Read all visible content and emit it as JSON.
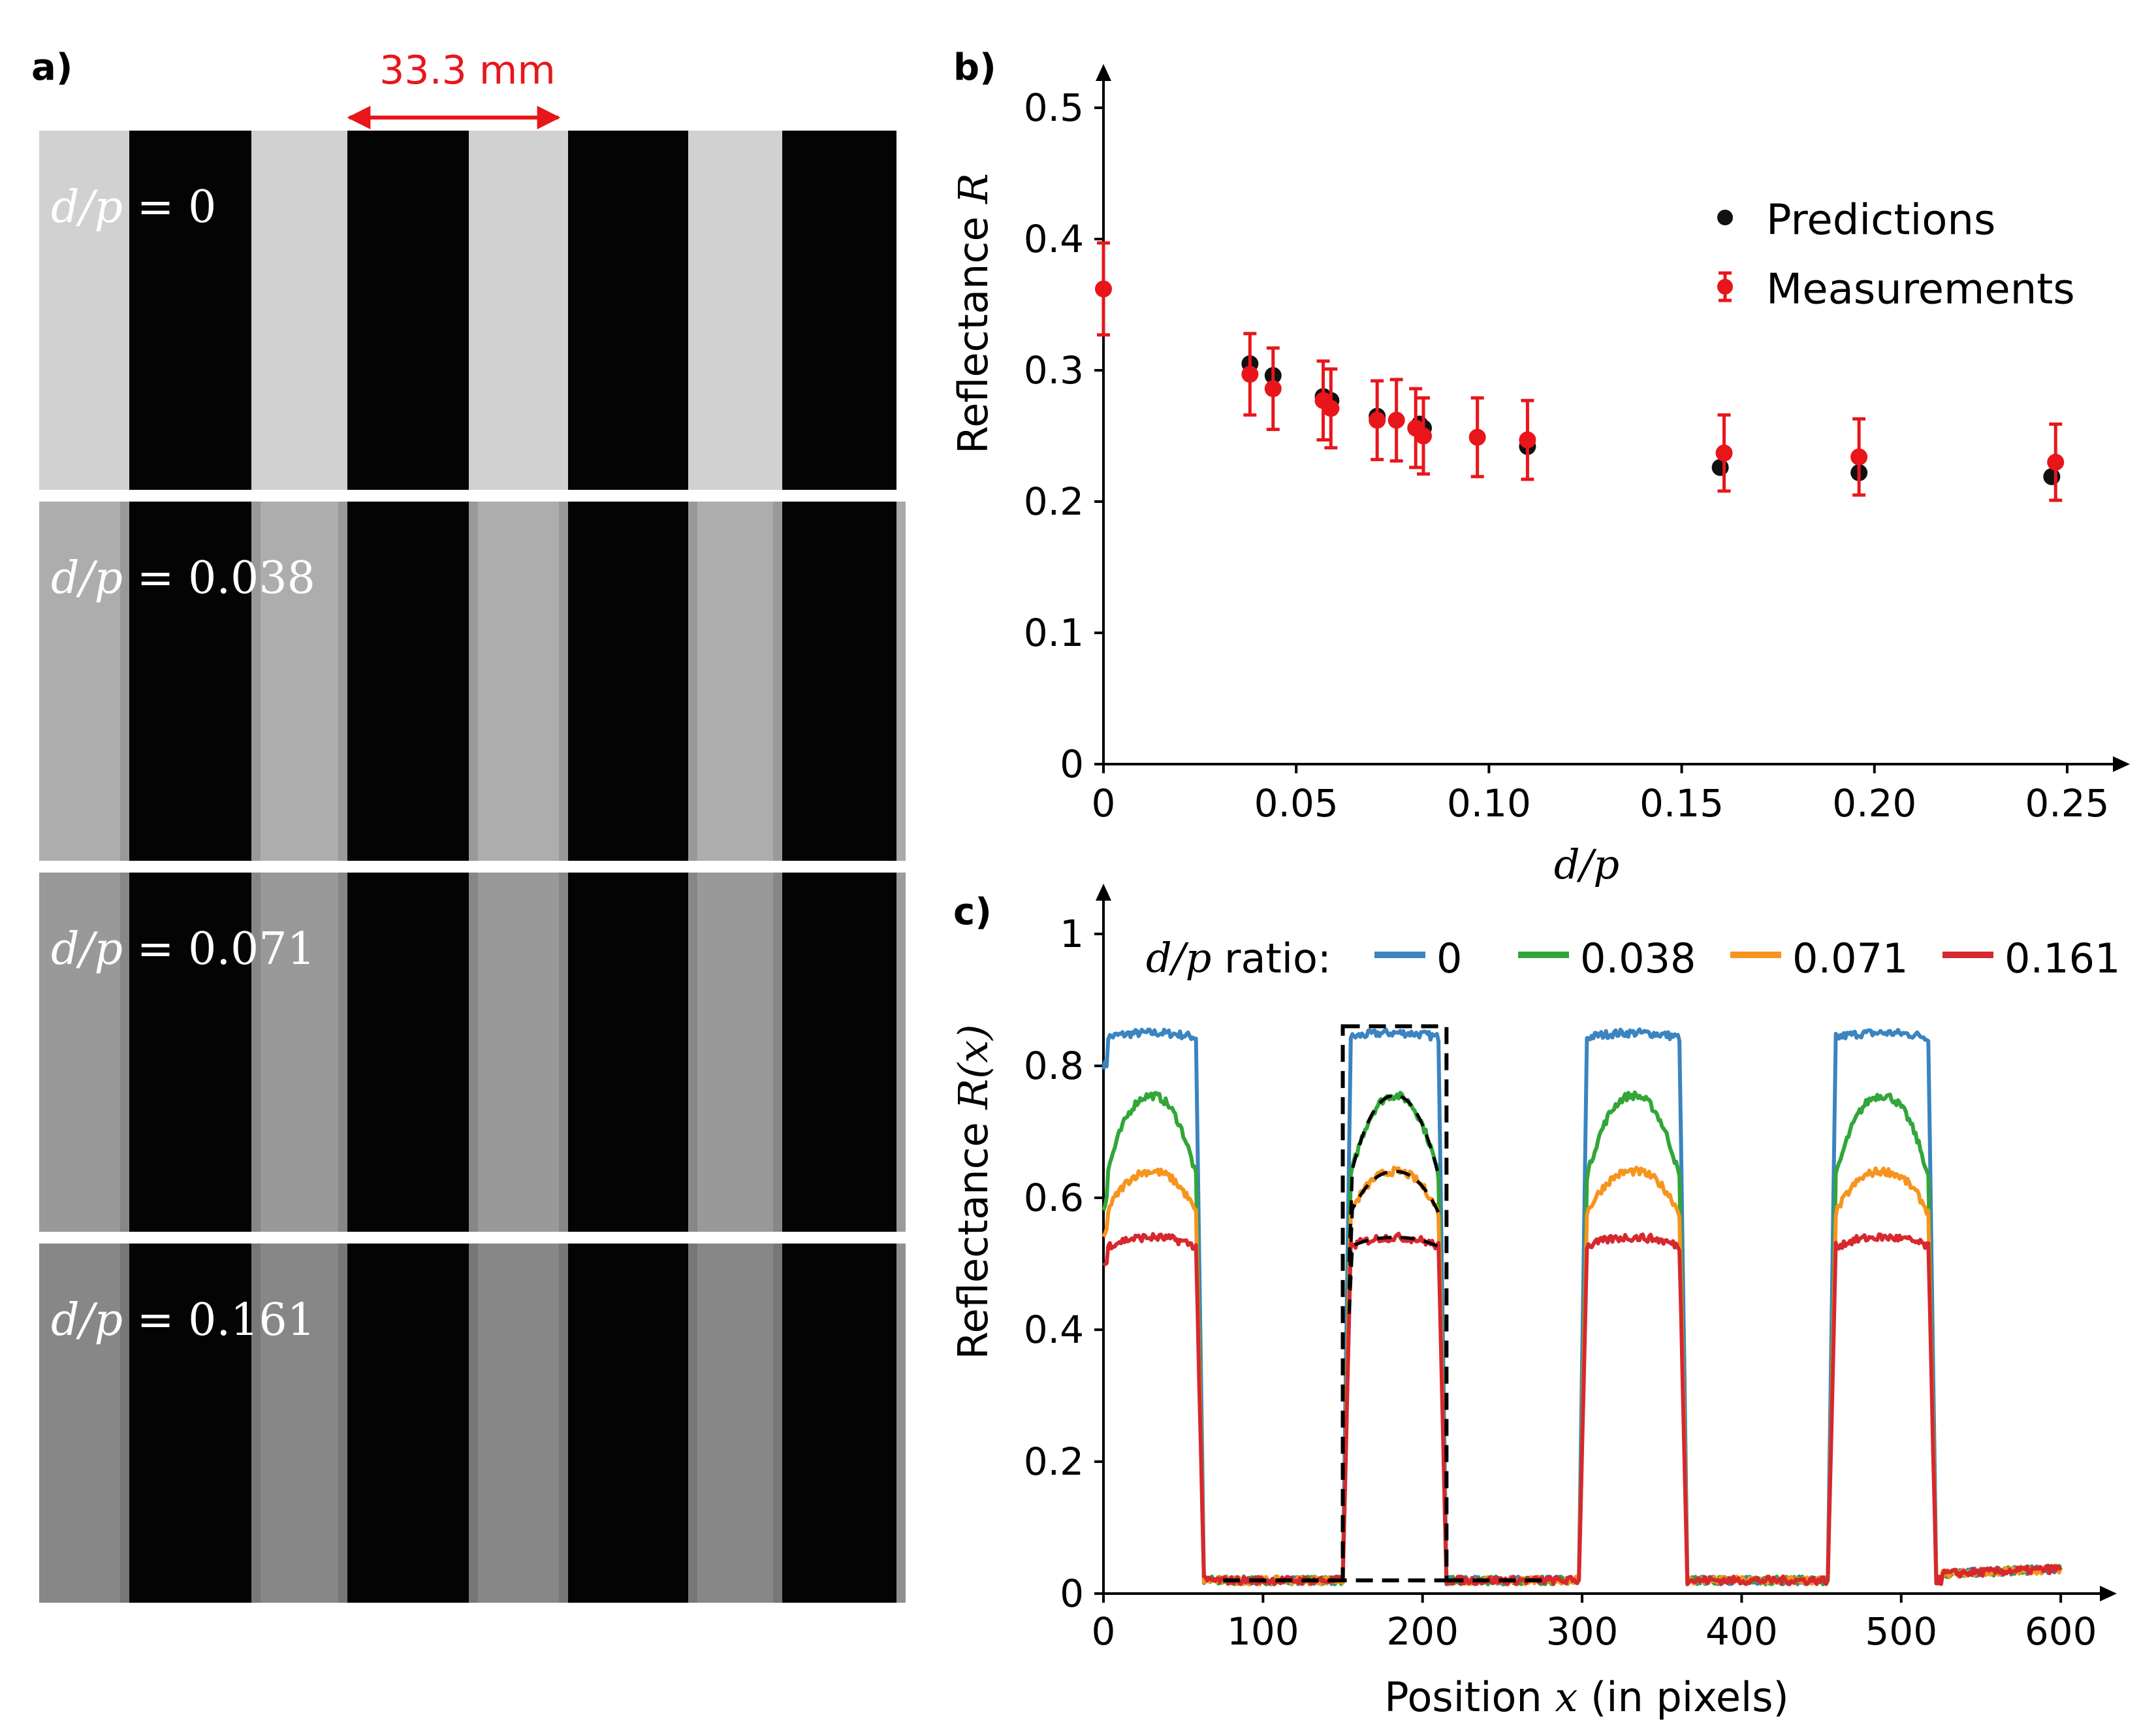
{
  "figure": {
    "panel_a": {
      "label": "a)",
      "scale_label": "33.3 mm",
      "stripe_count": 4,
      "images": [
        {
          "label_var": "d/p",
          "label_eq": " = ",
          "label_val": "0",
          "bright": 0.82
        },
        {
          "label_var": "d/p",
          "label_eq": " = ",
          "label_val": "0.038",
          "bright": 0.68
        },
        {
          "label_var": "d/p",
          "label_eq": " = ",
          "label_val": "0.071",
          "bright": 0.6
        },
        {
          "label_var": "d/p",
          "label_eq": " = ",
          "label_val": "0.161",
          "bright": 0.53
        }
      ]
    },
    "colors": {
      "red": "#e8161b",
      "black": "#111111",
      "blue": "#3a84c1",
      "green": "#32a638",
      "orange": "#f7941d",
      "crimson": "#d6282e"
    }
  },
  "chart_data": [
    {
      "type": "scatter",
      "panel_label": "b)",
      "xlabel": "d/p",
      "ylabel_text": "Reflectance ",
      "ylabel_var": "R",
      "xlim": [
        0,
        0.26
      ],
      "ylim": [
        0,
        0.5
      ],
      "xticks": [
        0,
        0.05,
        0.1,
        0.15,
        0.2,
        0.25
      ],
      "xtick_labels": [
        "0",
        "0.05",
        "0.10",
        "0.15",
        "0.20",
        "0.25"
      ],
      "yticks": [
        0,
        0.1,
        0.2,
        0.3,
        0.4,
        0.5
      ],
      "ytick_labels": [
        "0",
        "0.1",
        "0.2",
        "0.3",
        "0.4",
        "0.5"
      ],
      "legend": [
        "Predictions",
        "Measurements"
      ],
      "legend_position": "top-right",
      "predictions": {
        "x": [
          0.038,
          0.044,
          0.057,
          0.059,
          0.071,
          0.082,
          0.083,
          0.11,
          0.16,
          0.196,
          0.246
        ],
        "y": [
          0.305,
          0.296,
          0.28,
          0.277,
          0.265,
          0.259,
          0.256,
          0.242,
          0.226,
          0.222,
          0.219
        ]
      },
      "measurements": {
        "x": [
          0,
          0.038,
          0.044,
          0.057,
          0.059,
          0.071,
          0.076,
          0.081,
          0.083,
          0.097,
          0.11,
          0.161,
          0.196,
          0.247
        ],
        "y": [
          0.362,
          0.297,
          0.286,
          0.277,
          0.271,
          0.262,
          0.262,
          0.256,
          0.25,
          0.249,
          0.247,
          0.237,
          0.234,
          0.23
        ],
        "err": [
          0.035,
          0.031,
          0.031,
          0.03,
          0.03,
          0.03,
          0.031,
          0.03,
          0.029,
          0.03,
          0.03,
          0.029,
          0.029,
          0.029
        ]
      }
    },
    {
      "type": "line",
      "panel_label": "c)",
      "xlabel_text": "Position ",
      "xlabel_var": "x",
      "xlabel_rest": " (in pixels)",
      "ylabel_text": "Reflectance ",
      "ylabel_var": "R(x)",
      "xlim": [
        0,
        620
      ],
      "ylim": [
        0,
        1
      ],
      "xticks": [
        0,
        100,
        200,
        300,
        400,
        500,
        600
      ],
      "xtick_labels": [
        "0",
        "100",
        "200",
        "300",
        "400",
        "500",
        "600"
      ],
      "yticks": [
        0,
        0.2,
        0.4,
        0.6,
        0.8,
        1
      ],
      "ytick_labels": [
        "0",
        "0.2",
        "0.4",
        "0.6",
        "0.8",
        "1"
      ],
      "legend_title_var": "d/p",
      "legend_title_rest": " ratio:",
      "legend_position": "top",
      "bright_bands": [
        [
          0,
          63
        ],
        [
          150,
          215
        ],
        [
          298,
          366
        ],
        [
          454,
          522
        ]
      ],
      "dark_level": 0.02,
      "series": [
        {
          "name": "0",
          "peak": 0.85,
          "edge": 0.84
        },
        {
          "name": "0.038",
          "peak": 0.755,
          "edge": 0.58
        },
        {
          "name": "0.071",
          "peak": 0.64,
          "edge": 0.55
        },
        {
          "name": "0.161",
          "peak": 0.54,
          "edge": 0.52
        }
      ]
    }
  ]
}
